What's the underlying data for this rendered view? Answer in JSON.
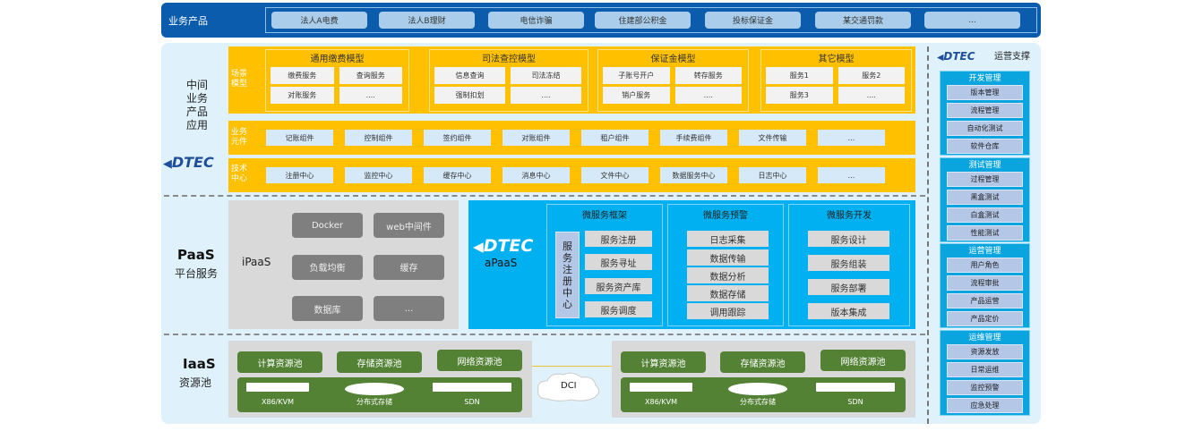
{
  "top": {
    "label": "业务产品",
    "items": [
      "法人A电费",
      "法人B理财",
      "电信诈骗",
      "住建部公积金",
      "投标保证金",
      "某交通罚款",
      "..."
    ]
  },
  "middle": {
    "label": [
      "中间",
      "业务",
      "产品",
      "应用"
    ],
    "logo": "DTEC",
    "scene_label": "场景\n模型",
    "models": [
      {
        "title": "通用缴费模型",
        "items": [
          "缴费服务",
          "查询服务",
          "对账服务",
          "...."
        ]
      },
      {
        "title": "司法查控模型",
        "items": [
          "信息查询",
          "司法冻结",
          "强制扣划",
          "...."
        ]
      },
      {
        "title": "保证金模型",
        "items": [
          "子账号开户",
          "转存服务",
          "销户服务",
          "...."
        ]
      },
      {
        "title": "其它模型",
        "items": [
          "服务1",
          "服务2",
          "服务3",
          "...."
        ]
      }
    ],
    "components_label": "业务\n元件",
    "components": [
      "记账组件",
      "控制组件",
      "签约组件",
      "对账组件",
      "租户组件",
      "手续费组件",
      "文件传输",
      "..."
    ],
    "tech_label": "技术\n中心",
    "tech": [
      "注册中心",
      "监控中心",
      "缓存中心",
      "消息中心",
      "文件中心",
      "数据服务中心",
      "日志中心",
      "..."
    ]
  },
  "paas": {
    "title": "PaaS",
    "subtitle": "平台服务",
    "ipaas_label": "iPaaS",
    "ipaas_items": [
      "Docker",
      "web中间件",
      "负载均衡",
      "缓存",
      "数据库",
      "..."
    ],
    "apaas_logo": "DTEC",
    "apaas_label": "aPaaS",
    "registry": "服务注册中心",
    "frames": [
      {
        "title": "微服务框架",
        "items": [
          "服务注册",
          "服务寻址",
          "服务资产库",
          "服务调度"
        ]
      },
      {
        "title": "微服务预警",
        "items": [
          "日志采集",
          "数据传输",
          "数据分析",
          "数据存储",
          "调用跟踪"
        ]
      },
      {
        "title": "微服务开发",
        "items": [
          "服务设计",
          "服务组装",
          "服务部署",
          "版本集成"
        ]
      }
    ]
  },
  "iaas": {
    "title": "IaaS",
    "subtitle": "资源池",
    "pools": [
      "计算资源池",
      "存储资源池",
      "网络资源池"
    ],
    "hardware": [
      "X86/KVM",
      "分布式存储",
      "SDN"
    ],
    "dci": "DCI"
  },
  "ops": {
    "logo": "DTEC",
    "title": "运营支撑",
    "groups": [
      {
        "title": "开发管理",
        "items": [
          "版本管理",
          "流程管理",
          "自动化测试",
          "软件仓库"
        ]
      },
      {
        "title": "测试管理",
        "items": [
          "过程管理",
          "黑盒测试",
          "白盒测试",
          "性能测试"
        ]
      },
      {
        "title": "运营管理",
        "items": [
          "用户角色",
          "流程审批",
          "产品运营",
          "产品定价"
        ]
      },
      {
        "title": "运维管理",
        "items": [
          "资源发放",
          "日常运维",
          "监控预警",
          "应急处理"
        ]
      }
    ]
  },
  "colors": {
    "top": "#0b5cad",
    "yellow": "#ffc000",
    "apaas": "#00b0f0",
    "green": "#548235",
    "gray": "#7f7f7f"
  }
}
